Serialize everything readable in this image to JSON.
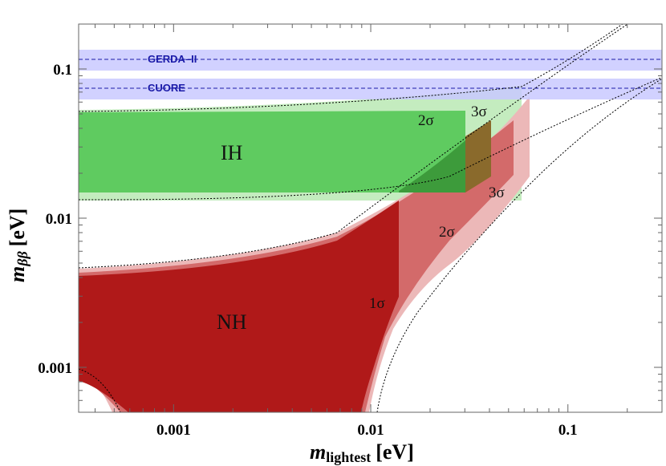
{
  "chart_data": {
    "type": "area",
    "title": "",
    "xlabel": {
      "var": "m",
      "sub": "lightest",
      "unit": "[eV]"
    },
    "ylabel": {
      "var": "m",
      "sub": "ββ",
      "unit": "[eV]"
    },
    "xscale": "log",
    "yscale": "log",
    "xlim": [
      0.00033,
      0.3
    ],
    "ylim": [
      0.0005,
      0.2
    ],
    "xticks": [
      {
        "value": 0.001,
        "label": "0.001"
      },
      {
        "value": 0.01,
        "label": "0.01"
      },
      {
        "value": 0.1,
        "label": "0.1"
      }
    ],
    "yticks": [
      {
        "value": 0.001,
        "label": "0.001"
      },
      {
        "value": 0.01,
        "label": "0.01"
      },
      {
        "value": 0.1,
        "label": "0.1"
      }
    ],
    "grid": false,
    "experiments": [
      {
        "name": "GERDA–II",
        "value": 0.11,
        "band": [
          0.092,
          0.127
        ]
      },
      {
        "name": "CUORE",
        "value": 0.073,
        "band": [
          0.06,
          0.087
        ]
      }
    ],
    "regions": [
      {
        "name": "IH",
        "label_pos": [
          0.0018,
          0.025
        ],
        "x_extent_by_sigma": {
          "2σ": 0.031,
          "3σ": 0.057
        },
        "upper_edge": [
          [
            0.00033,
            0.048
          ],
          [
            0.01,
            0.05
          ],
          [
            0.03,
            0.06
          ],
          [
            0.055,
            0.078
          ]
        ],
        "lower_edge": [
          [
            0.00033,
            0.0135
          ],
          [
            0.005,
            0.0137
          ],
          [
            0.02,
            0.016
          ],
          [
            0.055,
            0.055
          ]
        ]
      },
      {
        "name": "NH",
        "label_pos": [
          0.0025,
          0.0017
        ],
        "x_extent_by_sigma": {
          "1σ": 0.0147,
          "2σ": 0.04,
          "3σ": 0.066
        },
        "upper_edge": [
          [
            0.00033,
            0.0039
          ],
          [
            0.002,
            0.0043
          ],
          [
            0.005,
            0.006
          ],
          [
            0.01,
            0.011
          ],
          [
            0.015,
            0.015
          ],
          [
            0.04,
            0.04
          ],
          [
            0.066,
            0.066
          ]
        ],
        "lower_edge": [
          [
            0.008,
            0.0005
          ],
          [
            0.01,
            0.0012
          ],
          [
            0.02,
            0.006
          ],
          [
            0.04,
            0.024
          ],
          [
            0.066,
            0.055
          ]
        ]
      }
    ],
    "sigma_labels": [
      {
        "text": "1σ",
        "at": [
          0.0115,
          0.0032
        ]
      },
      {
        "text": "2σ",
        "at": [
          0.022,
          0.0075
        ]
      },
      {
        "text": "3σ",
        "at": [
          0.046,
          0.012
        ]
      },
      {
        "text": "2σ",
        "at": [
          0.02,
          0.039
        ]
      },
      {
        "text": "3σ",
        "at": [
          0.037,
          0.048
        ]
      }
    ],
    "colors": {
      "ih_1": "#5fcb60",
      "ih_2": "#3d9b3b",
      "ih_3": "#c4ecbf",
      "nh_1": "#b01919",
      "nh_2": "#d36a6a",
      "nh_3": "#ecb8b8",
      "overlap": "#8a6a2c",
      "band": "#c9c9ff",
      "band_line": "#1a1aa8"
    }
  }
}
